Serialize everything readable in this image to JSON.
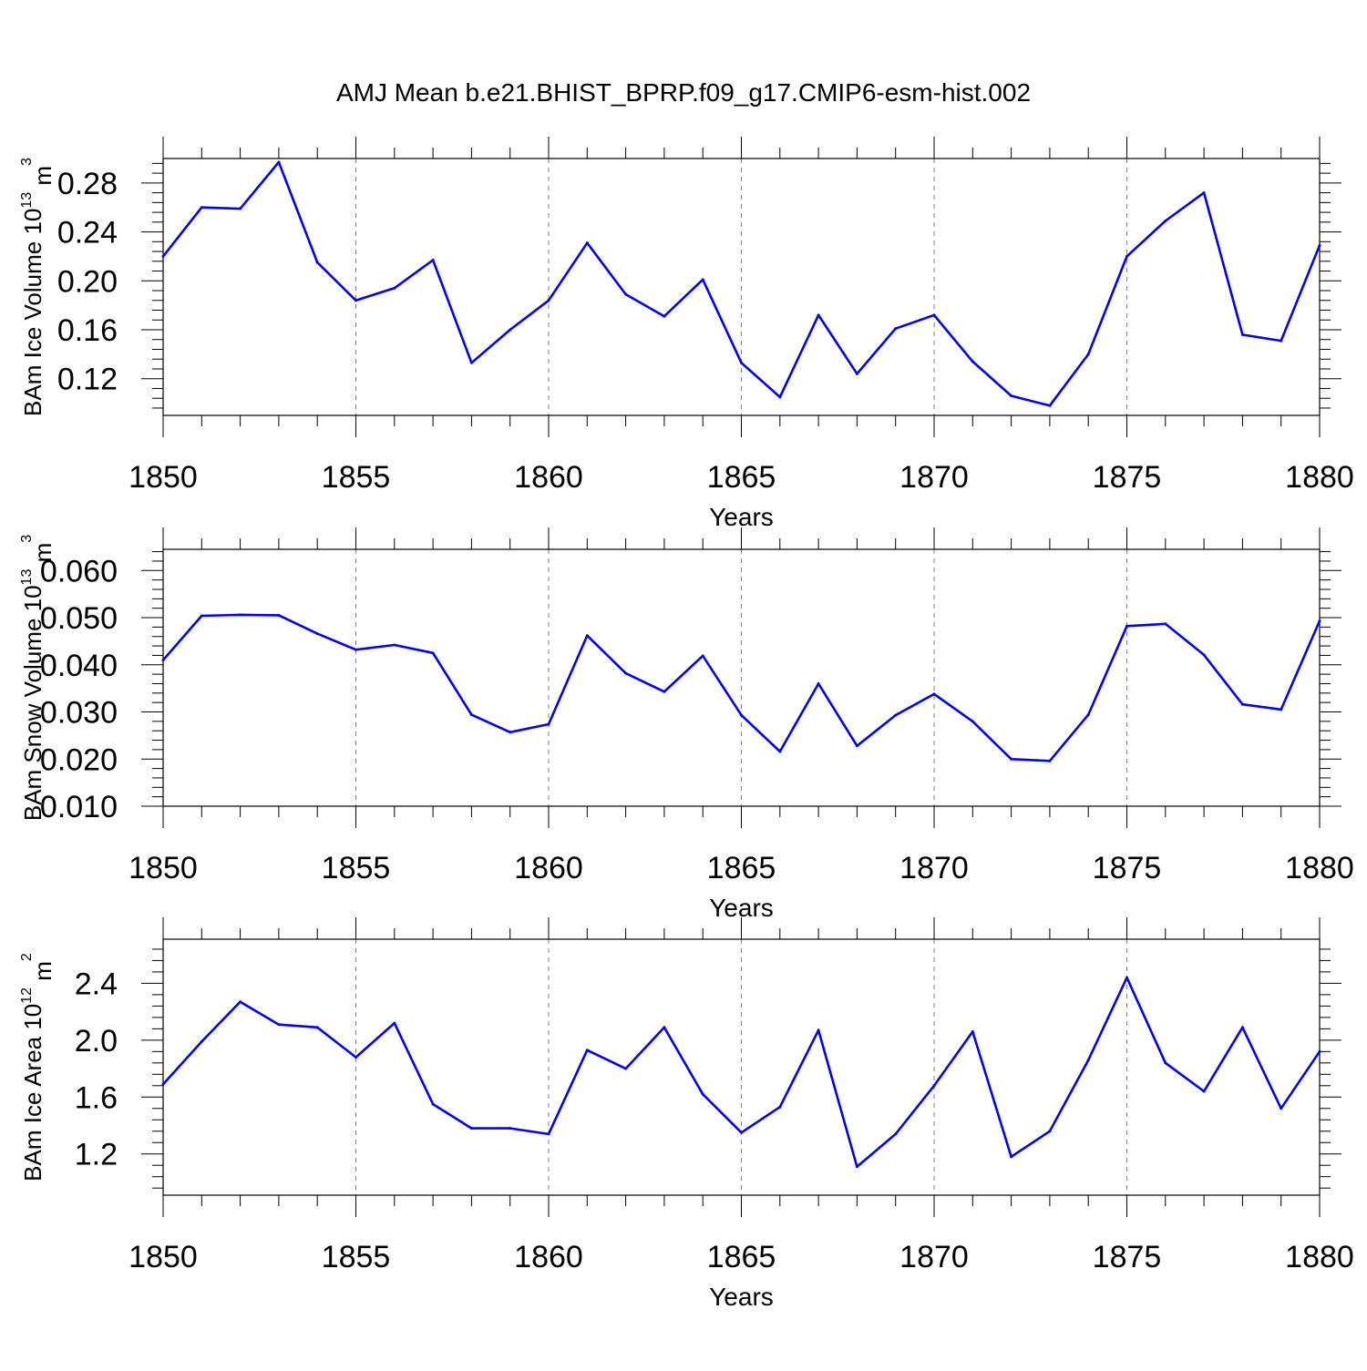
{
  "title": "AMJ Mean b.e21.BHIST_BPRP.f09_g17.CMIP6-esm-hist.002",
  "colors": {
    "line": "#0000ff",
    "axis": "#000000",
    "grid": "#808080"
  },
  "chart_data": [
    {
      "type": "line",
      "ylabel": "BAm Ice Volume 10",
      "ylabel_exp": "13",
      "ylabel_unit": " m",
      "ylabel_unit_exp": "3",
      "xlabel": "Years",
      "xlim": [
        1850,
        1880
      ],
      "ylim": [
        0.09,
        0.3
      ],
      "xticks": [
        "1850",
        "1855",
        "1860",
        "1865",
        "1870",
        "1875",
        "1880"
      ],
      "yticks": [
        "0.12",
        "0.16",
        "0.20",
        "0.24",
        "0.28"
      ],
      "x": [
        1850,
        1851,
        1852,
        1853,
        1854,
        1855,
        1856,
        1857,
        1858,
        1859,
        1860,
        1861,
        1862,
        1863,
        1864,
        1865,
        1866,
        1867,
        1868,
        1869,
        1870,
        1871,
        1872,
        1873,
        1874,
        1875,
        1876,
        1877,
        1878,
        1879,
        1880
      ],
      "values": [
        0.22,
        0.26,
        0.259,
        0.297,
        0.215,
        0.184,
        0.194,
        0.217,
        0.133,
        0.16,
        0.184,
        0.231,
        0.189,
        0.171,
        0.201,
        0.133,
        0.105,
        0.172,
        0.124,
        0.161,
        0.172,
        0.134,
        0.106,
        0.098,
        0.14,
        0.22,
        0.249,
        0.272,
        0.156,
        0.151,
        0.229
      ]
    },
    {
      "type": "line",
      "ylabel": "BAm Snow Volume 10",
      "ylabel_exp": "13",
      "ylabel_unit": " m",
      "ylabel_unit_exp": "3",
      "xlabel": "Years",
      "xlim": [
        1850,
        1880
      ],
      "ylim": [
        0.01,
        0.0645
      ],
      "xticks": [
        "1850",
        "1855",
        "1860",
        "1865",
        "1870",
        "1875",
        "1880"
      ],
      "yticks": [
        "0.010",
        "0.020",
        "0.030",
        "0.040",
        "0.050",
        "0.060"
      ],
      "x": [
        1850,
        1851,
        1852,
        1853,
        1854,
        1855,
        1856,
        1857,
        1858,
        1859,
        1860,
        1861,
        1862,
        1863,
        1864,
        1865,
        1866,
        1867,
        1868,
        1869,
        1870,
        1871,
        1872,
        1873,
        1874,
        1875,
        1876,
        1877,
        1878,
        1879,
        1880
      ],
      "values": [
        0.041,
        0.0504,
        0.0506,
        0.0505,
        0.0466,
        0.0432,
        0.0442,
        0.0425,
        0.0294,
        0.0257,
        0.0274,
        0.0462,
        0.0382,
        0.0343,
        0.0419,
        0.0293,
        0.0216,
        0.036,
        0.0228,
        0.0293,
        0.0338,
        0.028,
        0.02,
        0.0196,
        0.0294,
        0.0482,
        0.0487,
        0.0421,
        0.0316,
        0.0305,
        0.0493
      ]
    },
    {
      "type": "line",
      "ylabel": "BAm Ice Area 10",
      "ylabel_exp": "12",
      "ylabel_unit": " m",
      "ylabel_unit_exp": "2",
      "xlabel": "Years",
      "xlim": [
        1850,
        1880
      ],
      "ylim": [
        0.91,
        2.71
      ],
      "xticks": [
        "1850",
        "1855",
        "1860",
        "1865",
        "1870",
        "1875",
        "1880"
      ],
      "yticks": [
        "1.2",
        "1.6",
        "2.0",
        "2.4"
      ],
      "x": [
        1850,
        1851,
        1852,
        1853,
        1854,
        1855,
        1856,
        1857,
        1858,
        1859,
        1860,
        1861,
        1862,
        1863,
        1864,
        1865,
        1866,
        1867,
        1868,
        1869,
        1870,
        1871,
        1872,
        1873,
        1874,
        1875,
        1876,
        1877,
        1878,
        1879,
        1880
      ],
      "values": [
        1.69,
        1.99,
        2.27,
        2.11,
        2.09,
        1.88,
        2.12,
        1.55,
        1.38,
        1.38,
        1.34,
        1.93,
        1.8,
        2.09,
        1.62,
        1.35,
        1.53,
        2.07,
        1.11,
        1.34,
        1.68,
        2.06,
        1.18,
        1.36,
        1.86,
        2.44,
        1.84,
        1.64,
        2.09,
        1.52,
        1.92
      ]
    }
  ]
}
